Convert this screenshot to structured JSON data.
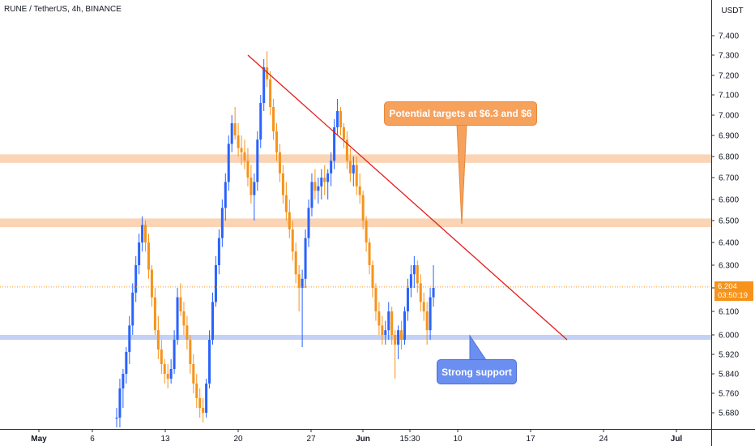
{
  "header": {
    "title": "RUNE / TetherUS, 4h, BINANCE",
    "currency": "USDT"
  },
  "colors": {
    "up": "#2962ff",
    "down": "#f7931a",
    "trendline": "#e81a1a",
    "resistance_zone": "#f9cda8",
    "support_zone": "#b7c9f3",
    "callout_targets": "#f6a15c",
    "callout_support": "#6a8ff0",
    "last_price": "#f7931a"
  },
  "price_tag": {
    "price": "6.204",
    "countdown": "03:50:19"
  },
  "annotations": {
    "targets_text": "Potential targets at $6.3 and $6",
    "support_text": "Strong support"
  },
  "chart_data": {
    "type": "candlestick",
    "symbol": "RUNE/USDT",
    "timeframe": "4h",
    "exchange": "BINANCE",
    "y_axis_ticks": [
      "7.400",
      "7.300",
      "7.200",
      "7.100",
      "7.000",
      "6.900",
      "6.800",
      "6.700",
      "6.600",
      "6.500",
      "6.400",
      "6.300",
      "6.200",
      "6.100",
      "6.000",
      "5.920",
      "5.840",
      "5.760",
      "5.680"
    ],
    "x_axis_ticks": [
      {
        "label": "May",
        "bold": true
      },
      {
        "label": "6",
        "bold": false
      },
      {
        "label": "13",
        "bold": false
      },
      {
        "label": "20",
        "bold": false
      },
      {
        "label": "27",
        "bold": false
      },
      {
        "label": "Jun",
        "bold": true
      },
      {
        "label": "15:30",
        "bold": false
      },
      {
        "label": "10",
        "bold": false
      },
      {
        "label": "17",
        "bold": false
      },
      {
        "label": "24",
        "bold": false
      },
      {
        "label": "Jul",
        "bold": true
      }
    ],
    "last_price": 6.204,
    "horizontal_zones": [
      {
        "name": "resistance",
        "low": 6.77,
        "high": 6.81
      },
      {
        "name": "resistance",
        "low": 6.47,
        "high": 6.51
      },
      {
        "name": "support",
        "low": 5.98,
        "high": 6.0
      }
    ],
    "trendline": {
      "from_date": "May 21",
      "from_price": 7.3,
      "to_date": "Jun 20",
      "to_price": 5.98
    },
    "candles": [
      [
        5.66,
        5.7,
        5.62,
        5.66
      ],
      [
        5.66,
        5.82,
        5.62,
        5.78
      ],
      [
        5.78,
        5.86,
        5.7,
        5.84
      ],
      [
        5.84,
        5.95,
        5.8,
        5.93
      ],
      [
        5.93,
        6.08,
        5.88,
        6.04
      ],
      [
        6.04,
        6.22,
        6.0,
        6.18
      ],
      [
        6.18,
        6.34,
        6.14,
        6.3
      ],
      [
        6.3,
        6.44,
        6.26,
        6.4
      ],
      [
        6.4,
        6.52,
        6.36,
        6.48
      ],
      [
        6.48,
        6.5,
        6.36,
        6.4
      ],
      [
        6.4,
        6.44,
        6.24,
        6.28
      ],
      [
        6.28,
        6.3,
        6.12,
        6.16
      ],
      [
        6.16,
        6.2,
        6.0,
        6.02
      ],
      [
        6.02,
        6.08,
        5.9,
        5.94
      ],
      [
        5.94,
        5.98,
        5.84,
        5.88
      ],
      [
        5.88,
        5.9,
        5.8,
        5.84
      ],
      [
        5.84,
        5.88,
        5.78,
        5.82
      ],
      [
        5.82,
        5.9,
        5.8,
        5.86
      ],
      [
        5.86,
        6.02,
        5.84,
        5.98
      ],
      [
        5.98,
        6.2,
        5.96,
        6.16
      ],
      [
        6.16,
        6.22,
        6.08,
        6.1
      ],
      [
        6.1,
        6.14,
        6.0,
        6.04
      ],
      [
        6.04,
        6.08,
        5.94,
        5.98
      ],
      [
        5.98,
        6.0,
        5.84,
        5.88
      ],
      [
        5.88,
        5.92,
        5.76,
        5.8
      ],
      [
        5.8,
        5.84,
        5.7,
        5.74
      ],
      [
        5.74,
        5.78,
        5.66,
        5.7
      ],
      [
        5.7,
        5.74,
        5.64,
        5.68
      ],
      [
        5.68,
        5.82,
        5.66,
        5.8
      ],
      [
        5.8,
        6.02,
        5.78,
        5.98
      ],
      [
        5.98,
        6.18,
        5.96,
        6.14
      ],
      [
        6.14,
        6.34,
        6.12,
        6.3
      ],
      [
        6.3,
        6.46,
        6.26,
        6.42
      ],
      [
        6.42,
        6.6,
        6.38,
        6.56
      ],
      [
        6.56,
        6.72,
        6.5,
        6.68
      ],
      [
        6.68,
        6.9,
        6.64,
        6.86
      ],
      [
        6.86,
        7.0,
        6.82,
        6.96
      ],
      [
        6.96,
        7.04,
        6.88,
        6.9
      ],
      [
        6.9,
        6.96,
        6.8,
        6.84
      ],
      [
        6.84,
        6.9,
        6.76,
        6.82
      ],
      [
        6.82,
        6.88,
        6.74,
        6.78
      ],
      [
        6.78,
        6.84,
        6.66,
        6.7
      ],
      [
        6.7,
        6.76,
        6.58,
        6.62
      ],
      [
        6.62,
        6.72,
        6.5,
        6.68
      ],
      [
        6.68,
        6.92,
        6.64,
        6.88
      ],
      [
        6.88,
        7.1,
        6.84,
        7.06
      ],
      [
        7.06,
        7.28,
        7.02,
        7.24
      ],
      [
        7.24,
        7.32,
        7.14,
        7.18
      ],
      [
        7.18,
        7.22,
        7.0,
        7.04
      ],
      [
        7.04,
        7.08,
        6.88,
        6.92
      ],
      [
        6.92,
        6.96,
        6.78,
        6.82
      ],
      [
        6.82,
        6.86,
        6.68,
        6.72
      ],
      [
        6.72,
        6.76,
        6.58,
        6.62
      ],
      [
        6.62,
        6.68,
        6.5,
        6.54
      ],
      [
        6.54,
        6.6,
        6.42,
        6.46
      ],
      [
        6.46,
        6.5,
        6.32,
        6.36
      ],
      [
        6.36,
        6.4,
        6.22,
        6.26
      ],
      [
        6.26,
        6.3,
        6.1,
        6.2
      ],
      [
        6.2,
        6.28,
        5.95,
        6.24
      ],
      [
        6.24,
        6.46,
        6.2,
        6.42
      ],
      [
        6.42,
        6.6,
        6.38,
        6.56
      ],
      [
        6.56,
        6.72,
        6.52,
        6.68
      ],
      [
        6.68,
        6.74,
        6.6,
        6.64
      ],
      [
        6.64,
        6.7,
        6.58,
        6.66
      ],
      [
        6.66,
        6.74,
        6.6,
        6.7
      ],
      [
        6.7,
        6.76,
        6.62,
        6.68
      ],
      [
        6.68,
        6.74,
        6.6,
        6.72
      ],
      [
        6.72,
        6.82,
        6.66,
        6.78
      ],
      [
        6.78,
        6.98,
        6.74,
        6.94
      ],
      [
        6.94,
        7.08,
        6.9,
        7.02
      ],
      [
        7.02,
        7.04,
        6.9,
        6.94
      ],
      [
        6.94,
        6.96,
        6.84,
        6.88
      ],
      [
        6.88,
        6.92,
        6.74,
        6.78
      ],
      [
        6.78,
        6.84,
        6.68,
        6.72
      ],
      [
        6.72,
        6.8,
        6.66,
        6.76
      ],
      [
        6.76,
        6.8,
        6.62,
        6.66
      ],
      [
        6.66,
        6.72,
        6.58,
        6.62
      ],
      [
        6.62,
        6.64,
        6.46,
        6.5
      ],
      [
        6.5,
        6.52,
        6.36,
        6.4
      ],
      [
        6.4,
        6.42,
        6.26,
        6.3
      ],
      [
        6.3,
        6.32,
        6.16,
        6.2
      ],
      [
        6.2,
        6.22,
        6.06,
        6.1
      ],
      [
        6.1,
        6.14,
        6.0,
        6.04
      ],
      [
        6.04,
        6.08,
        5.96,
        6.0
      ],
      [
        6.0,
        6.06,
        5.96,
        6.02
      ],
      [
        6.02,
        6.14,
        5.98,
        6.1
      ],
      [
        6.1,
        6.12,
        5.96,
        6.0
      ],
      [
        6.0,
        6.02,
        5.82,
        5.96
      ],
      [
        5.96,
        6.04,
        5.9,
        6.02
      ],
      [
        6.02,
        6.06,
        5.94,
        5.98
      ],
      [
        5.98,
        6.12,
        5.96,
        6.1
      ],
      [
        6.1,
        6.24,
        6.06,
        6.2
      ],
      [
        6.2,
        6.3,
        6.16,
        6.26
      ],
      [
        6.26,
        6.34,
        6.2,
        6.3
      ],
      [
        6.3,
        6.32,
        6.18,
        6.22
      ],
      [
        6.22,
        6.26,
        6.1,
        6.14
      ],
      [
        6.14,
        6.18,
        6.06,
        6.1
      ],
      [
        6.1,
        6.14,
        5.96,
        6.02
      ],
      [
        6.02,
        6.2,
        5.98,
        6.16
      ],
      [
        6.16,
        6.3,
        6.12,
        6.2
      ]
    ]
  }
}
